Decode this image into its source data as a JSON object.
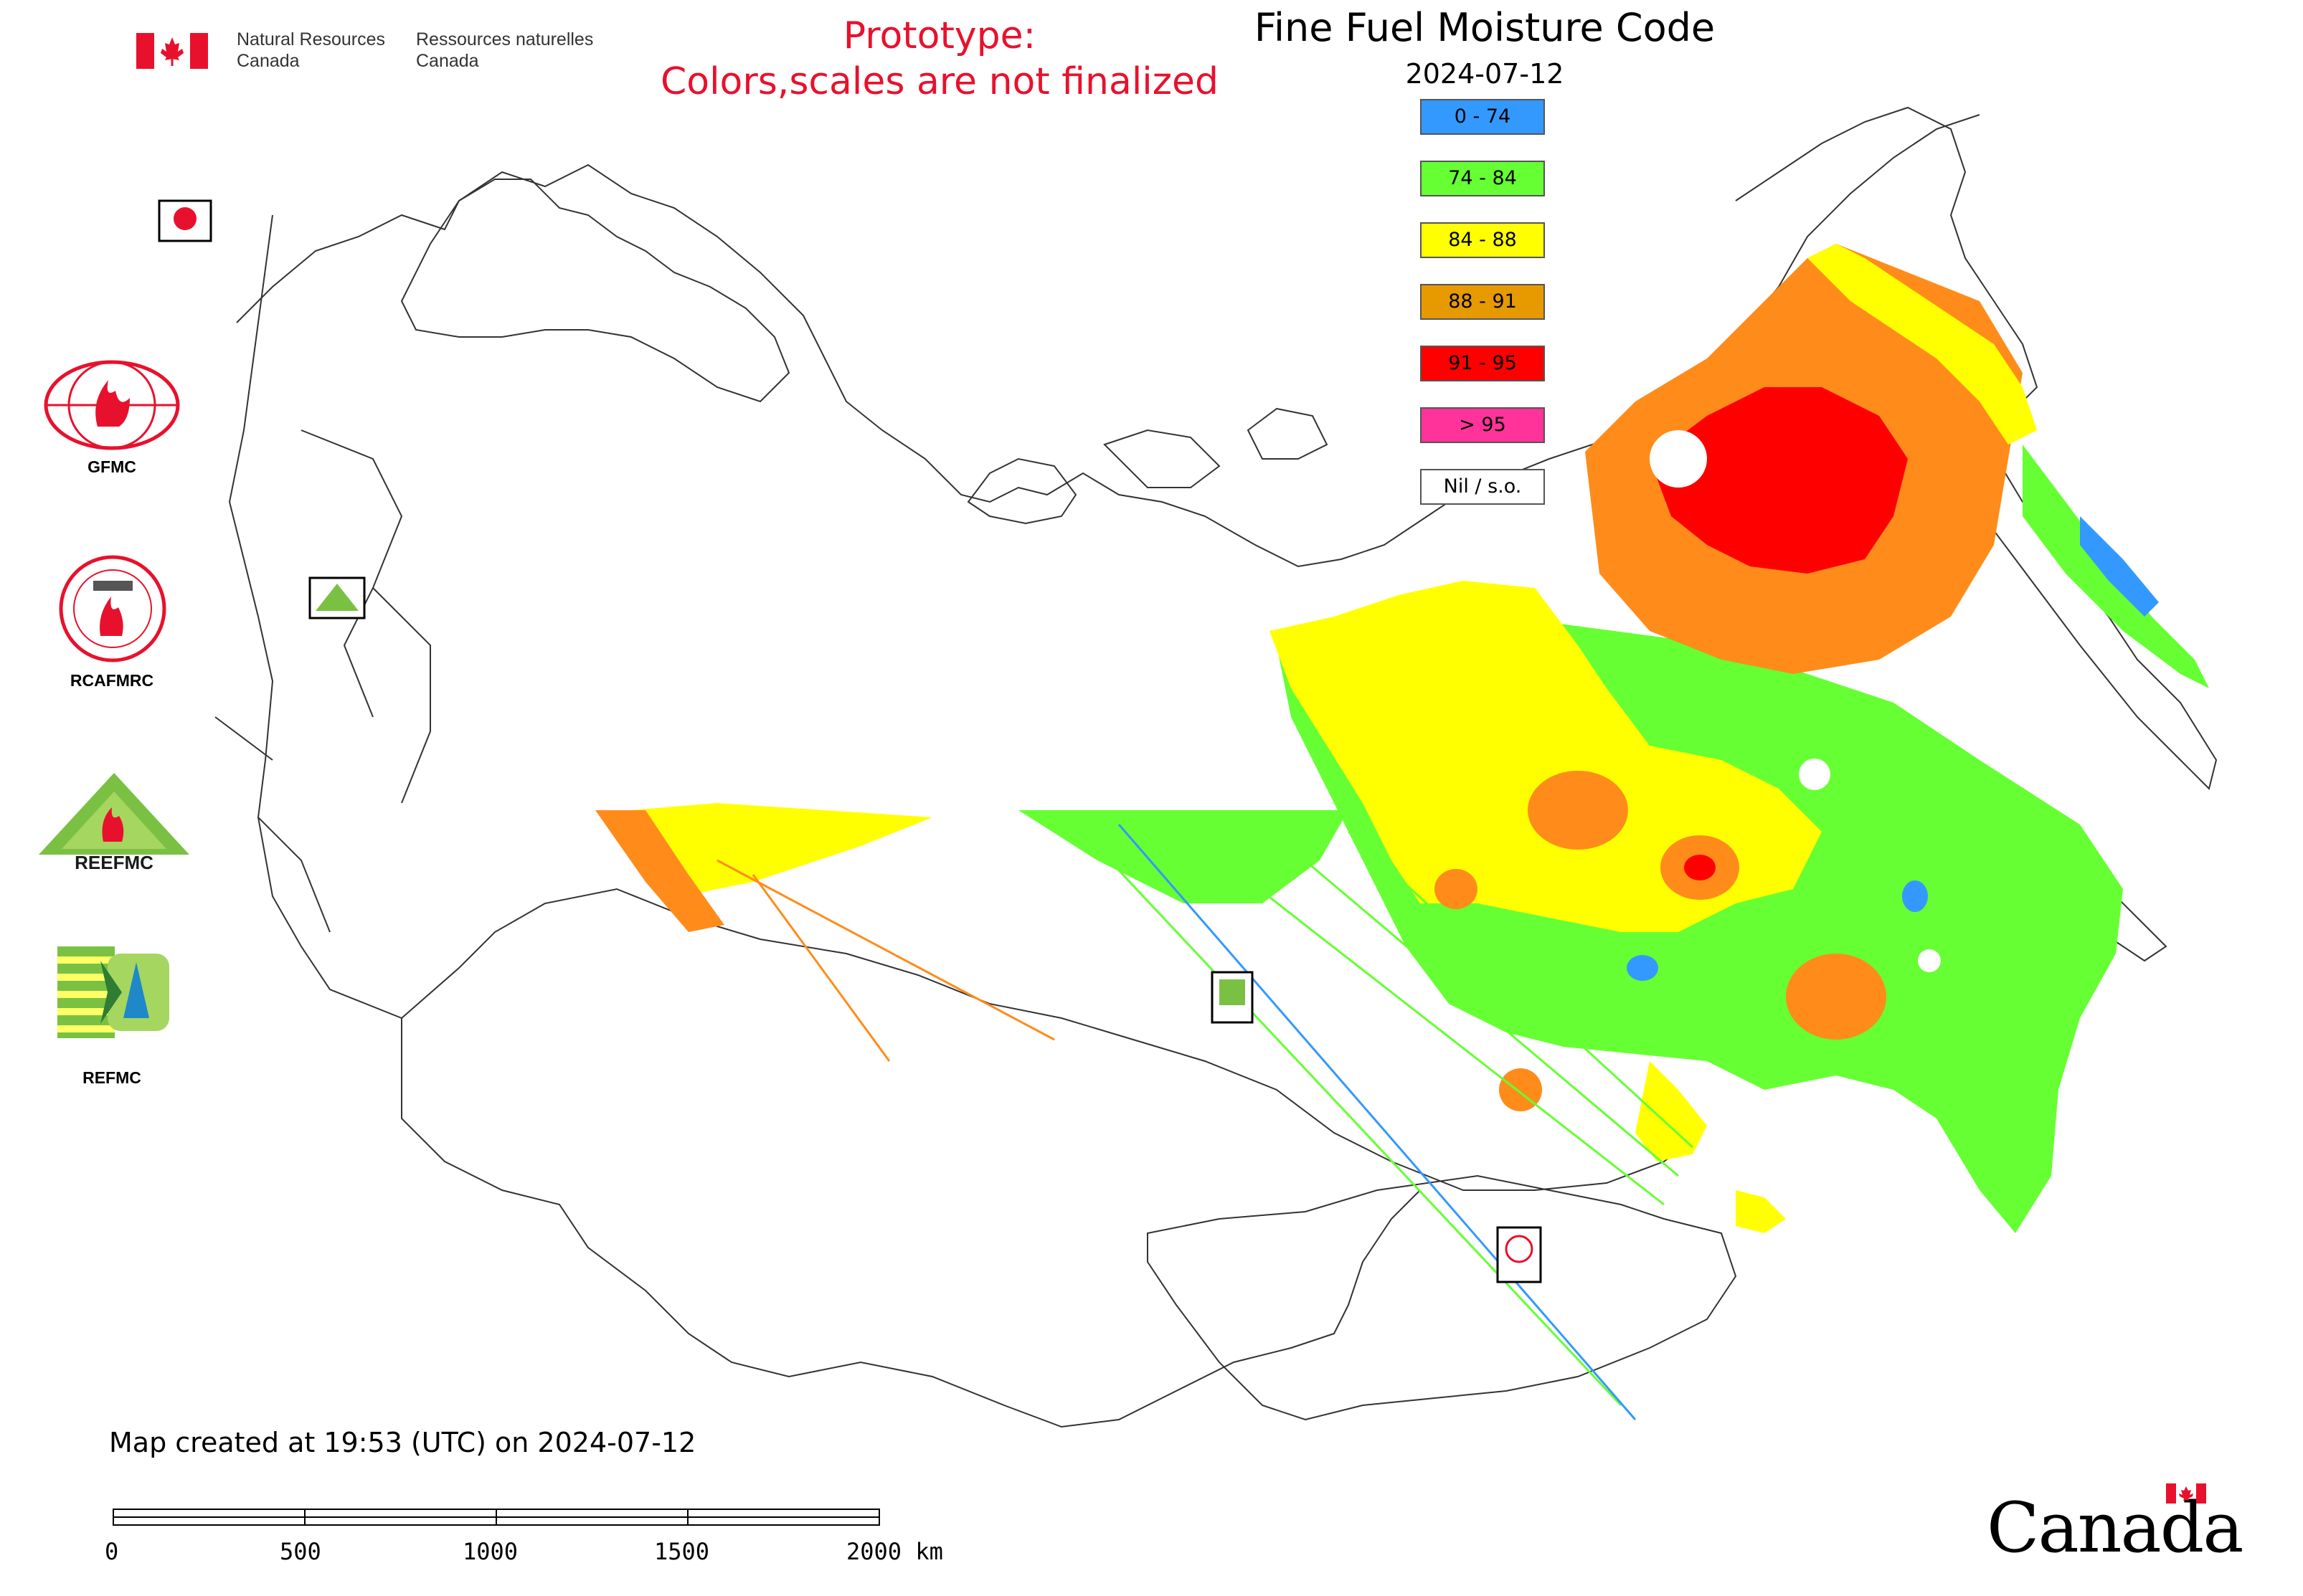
{
  "header": {
    "nrcan_en": [
      "Natural Resources",
      "Canada"
    ],
    "nrcan_fr": [
      "Ressources naturelles",
      "Canada"
    ],
    "prototype_lines": [
      "Prototype:",
      "Colors,scales are not finalized"
    ],
    "title": "Fine Fuel Moisture Code",
    "date": "2024-07-12"
  },
  "legend": [
    {
      "label": "0 - 74",
      "color": "#3399ff"
    },
    {
      "label": "74 - 84",
      "color": "#66ff33"
    },
    {
      "label": "84 - 88",
      "color": "#ffff00"
    },
    {
      "label": "88 - 91",
      "color": "#e69a00"
    },
    {
      "label": "91 - 95",
      "color": "#ff0000"
    },
    {
      "label": "> 95",
      "color": "#ff3399"
    },
    {
      "label": "Nil / s.o.",
      "color": "#ffffff"
    }
  ],
  "logos": [
    {
      "label": "GFMC",
      "icon": "gfmc-globe-logo"
    },
    {
      "label": "RCAFMRC",
      "icon": "rcafmrc-seal-logo"
    },
    {
      "label": "REEFMC",
      "icon": "reefmc-triangle-logo"
    },
    {
      "label": "REFMC",
      "icon": "refmc-striped-logo"
    }
  ],
  "footer": {
    "created": "Map created at 19:53 (UTC) on 2024-07-12",
    "scale_ticks": [
      "0",
      "500",
      "1000",
      "1500",
      "2000 km"
    ],
    "wordmark": "Canada"
  }
}
